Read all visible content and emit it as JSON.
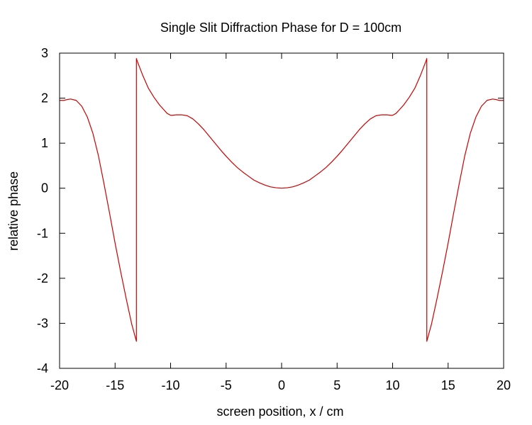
{
  "chart_data": {
    "type": "line",
    "title": "Single Slit Diffraction Phase for D = 100cm",
    "xlabel": "screen position, x / cm",
    "ylabel": "relative phase",
    "xlim": [
      -20,
      20
    ],
    "ylim": [
      -4,
      3
    ],
    "xticks": [
      -20,
      -15,
      -10,
      -5,
      0,
      5,
      10,
      15,
      20
    ],
    "xtick_labels": [
      "-20",
      "-15",
      "-10",
      "-5",
      "0",
      "5",
      "10",
      "15",
      "20"
    ],
    "yticks": [
      -4,
      -3,
      -2,
      -1,
      0,
      1,
      2,
      3
    ],
    "ytick_labels": [
      "-4",
      "-3",
      "-2",
      "-1",
      "0",
      "1",
      "2",
      "3"
    ],
    "grid": false,
    "legend": "none",
    "series": [
      {
        "color": "#cc0000",
        "x": [
          0,
          0.5,
          1,
          1.5,
          2,
          2.5,
          3,
          3.5,
          4,
          4.5,
          5,
          5.5,
          6,
          6.5,
          7,
          7.5,
          8,
          8.5,
          9,
          9.2,
          9.5,
          9.8,
          10,
          10.3,
          10.6,
          11,
          11.5,
          12,
          12.5,
          13,
          13.08,
          13.08,
          13.5,
          14,
          14.5,
          15,
          15.5,
          16,
          16.5,
          17,
          17.5,
          18,
          18.5,
          19,
          19.3,
          19.6,
          19.8,
          20
        ],
        "y": [
          0,
          0.01,
          0.03,
          0.07,
          0.12,
          0.18,
          0.27,
          0.36,
          0.46,
          0.58,
          0.71,
          0.85,
          1.0,
          1.15,
          1.3,
          1.43,
          1.54,
          1.61,
          1.63,
          1.63,
          1.63,
          1.62,
          1.62,
          1.66,
          1.74,
          1.85,
          2.02,
          2.22,
          2.5,
          2.82,
          2.88,
          -3.4,
          -3.02,
          -2.45,
          -1.85,
          -1.22,
          -0.55,
          0.1,
          0.72,
          1.22,
          1.58,
          1.82,
          1.95,
          1.98,
          1.97,
          1.95,
          1.95,
          1.95
        ]
      }
    ]
  }
}
